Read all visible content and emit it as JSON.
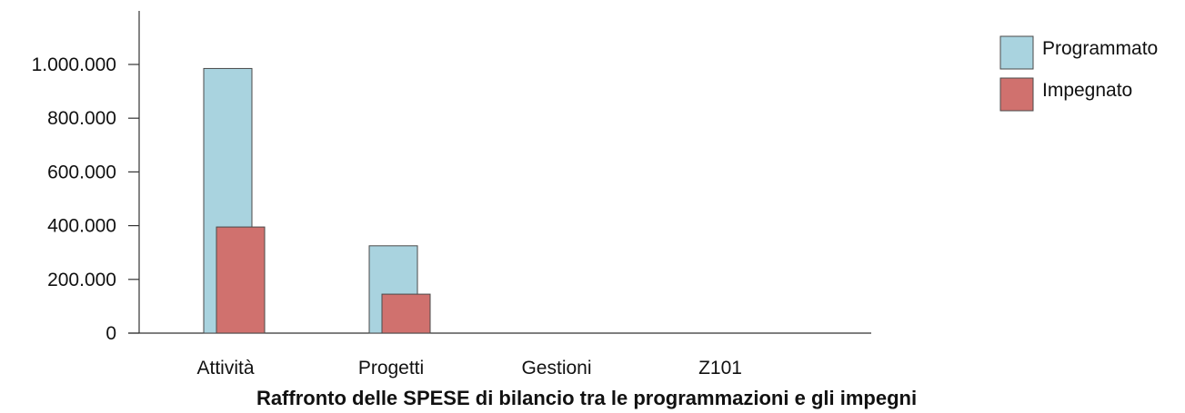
{
  "chart_data": {
    "type": "bar",
    "title": "Raffronto delle SPESE di bilancio tra le programmazioni e gli impegni",
    "xlabel": "",
    "ylabel": "",
    "categories": [
      "Attività",
      "Progetti",
      "Gestioni",
      "Z101"
    ],
    "series": [
      {
        "name": "Programmato",
        "values": [
          985000,
          325000,
          0,
          0
        ],
        "color": "#a9d3df"
      },
      {
        "name": "Impegnato",
        "values": [
          395000,
          145000,
          0,
          0
        ],
        "color": "#d0716e"
      }
    ],
    "ylim": [
      0,
      1000000
    ],
    "yticks": [
      0,
      200000,
      400000,
      600000,
      800000,
      1000000
    ],
    "ytick_labels": [
      "0",
      "200.000",
      "400.000",
      "600.000",
      "800.000",
      "1.000.000"
    ],
    "grid": false,
    "legend_position": "top-right"
  }
}
